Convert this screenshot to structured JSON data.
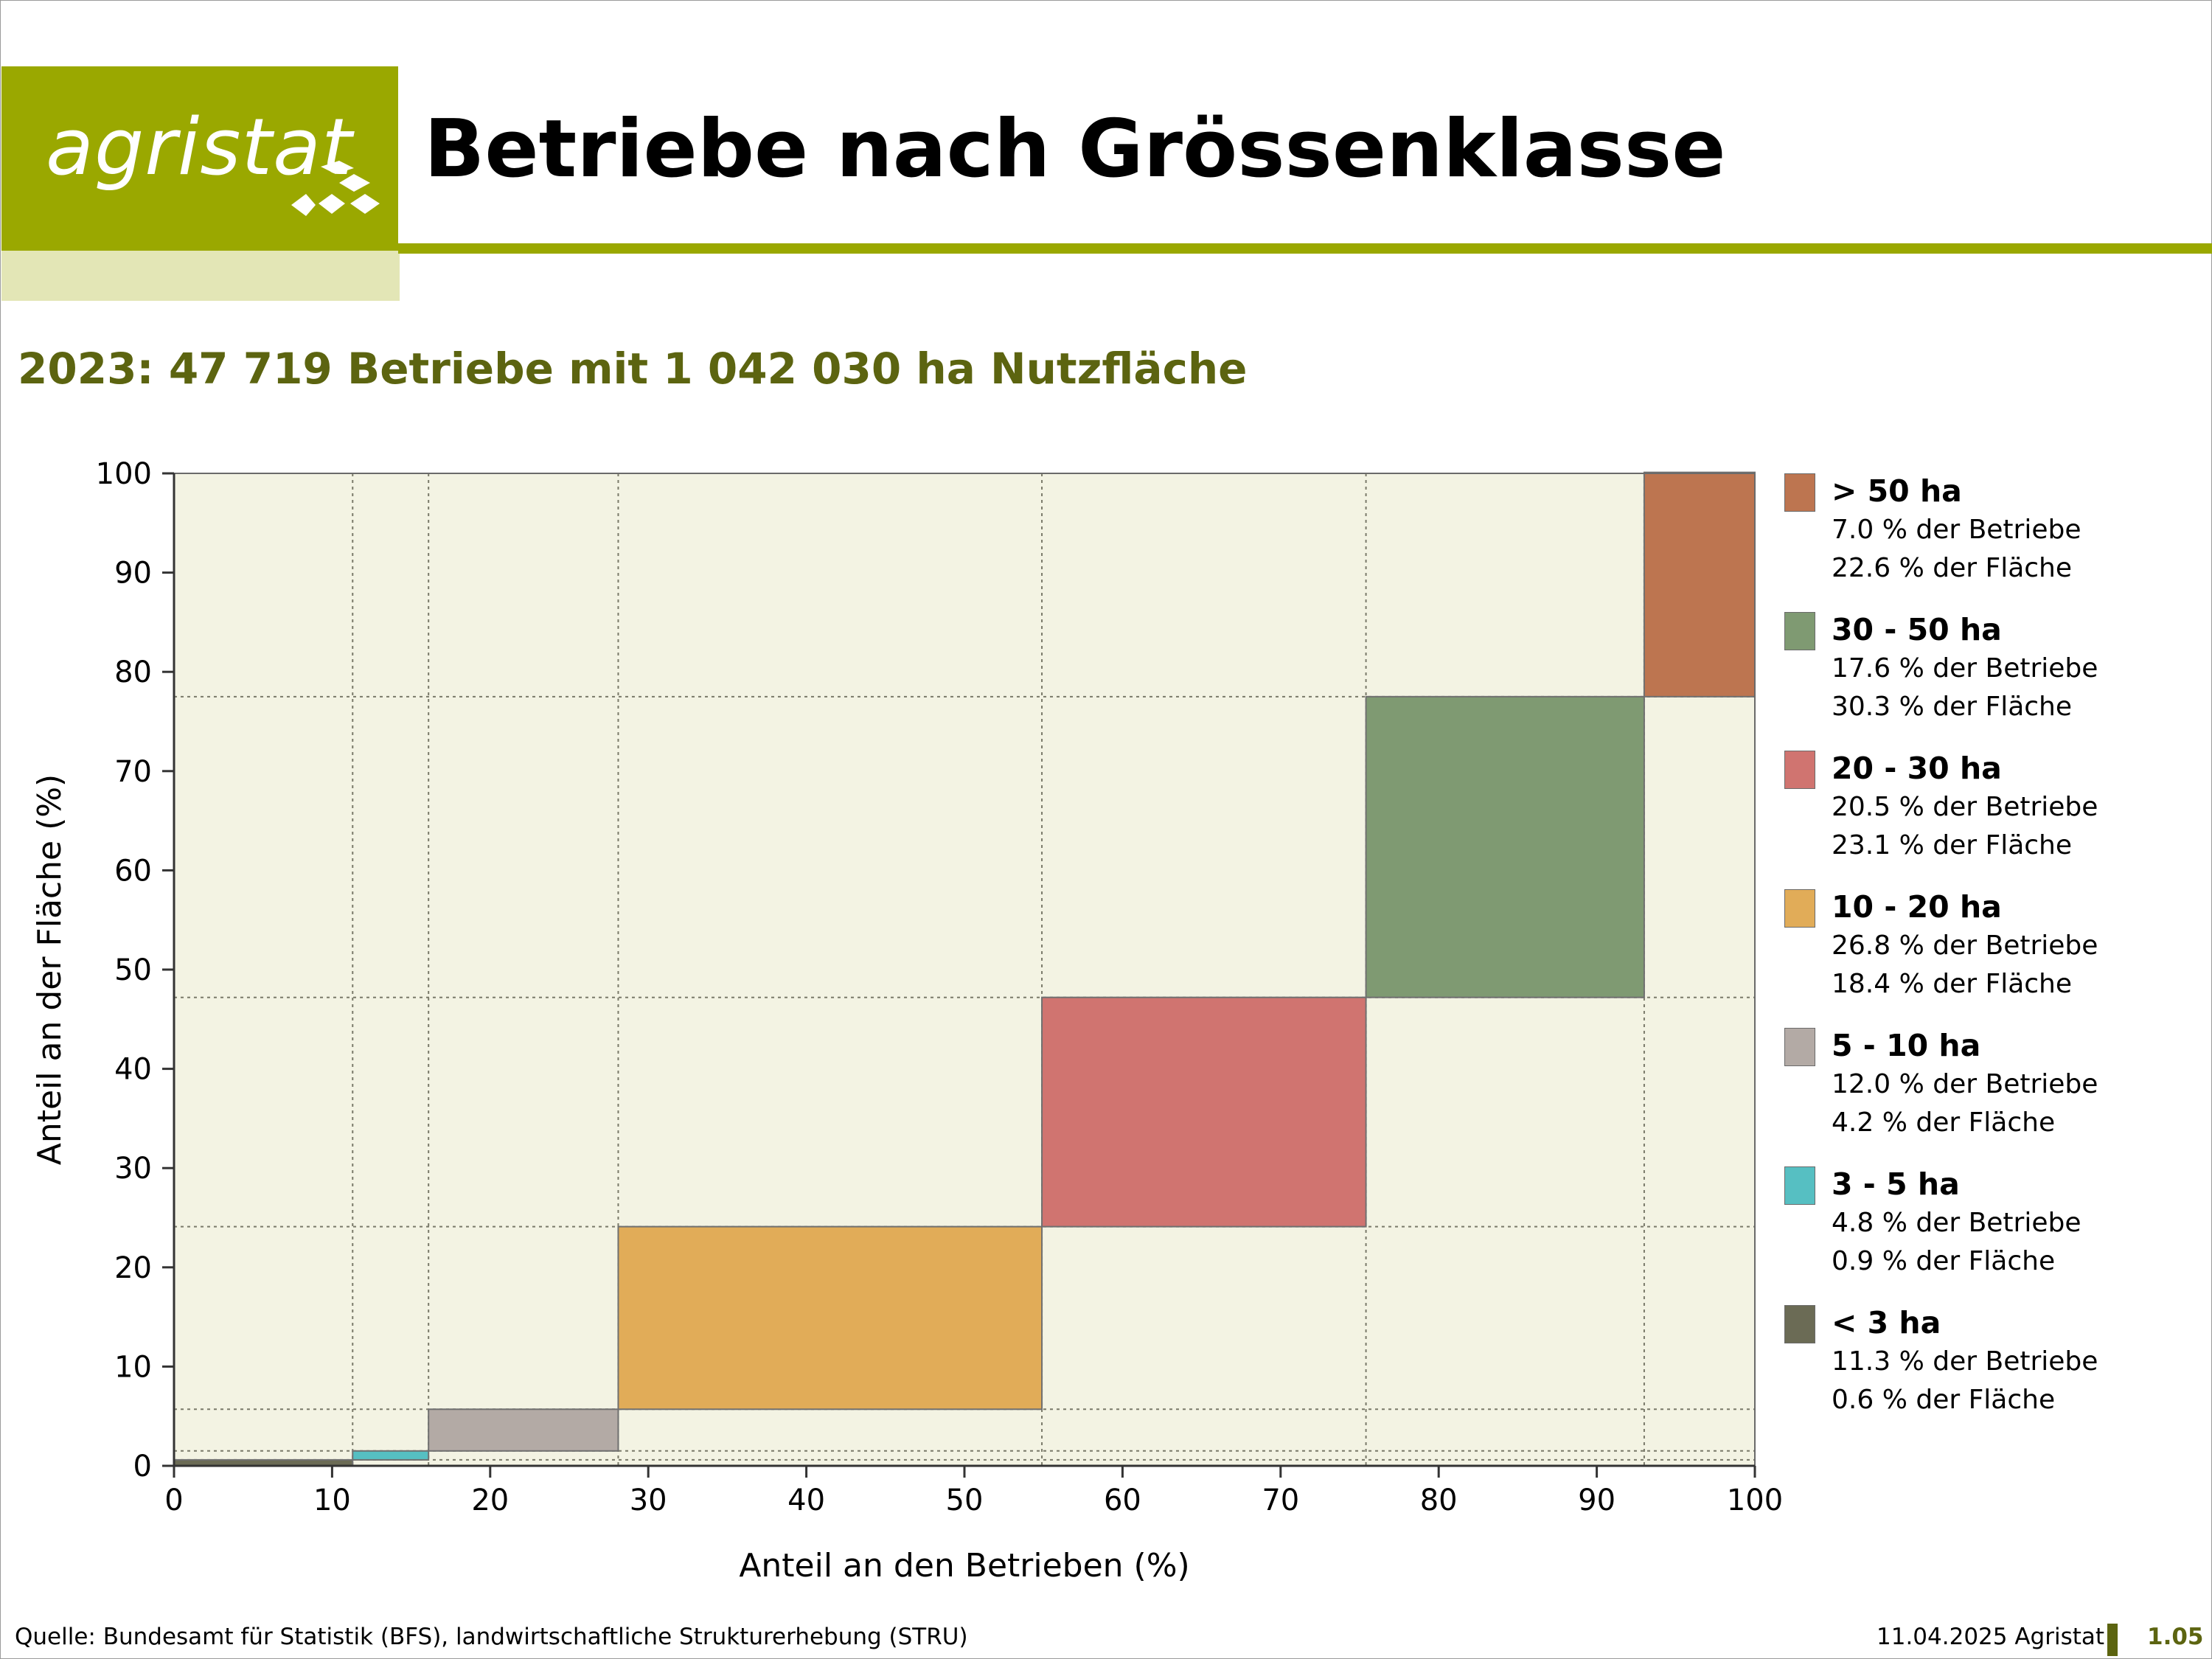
{
  "header": {
    "logo_text": "agristat",
    "title": "Betriebe nach Grössenklasse",
    "brand_color": "#9aa800"
  },
  "subtitle": "2023: 47 719 Betriebe mit 1 042 030 ha Nutzfläche",
  "chart_data": {
    "type": "marimekko-step",
    "xlabel": "Anteil an den Betrieben (%)",
    "ylabel": "Anteil an der Fläche (%)",
    "xlim": [
      0,
      100
    ],
    "ylim": [
      0,
      100
    ],
    "xticks": [
      "0",
      "10",
      "20",
      "30",
      "40",
      "50",
      "60",
      "70",
      "80",
      "90",
      "100"
    ],
    "yticks": [
      "0",
      "10",
      "20",
      "30",
      "40",
      "50",
      "60",
      "70",
      "80",
      "90",
      "100"
    ],
    "grid": "dotted at class boundaries",
    "legend_position": "right",
    "plot_background": "#f3f3e3",
    "series": [
      {
        "name": "< 3 ha",
        "betriebe_pct": 11.3,
        "flaeche_pct": 0.6,
        "color": "#6b6b55"
      },
      {
        "name": "3 - 5 ha",
        "betriebe_pct": 4.8,
        "flaeche_pct": 0.9,
        "color": "#56bfc2"
      },
      {
        "name": "5 - 10 ha",
        "betriebe_pct": 12.0,
        "flaeche_pct": 4.2,
        "color": "#b3aaa5"
      },
      {
        "name": "10 - 20 ha",
        "betriebe_pct": 26.8,
        "flaeche_pct": 18.4,
        "color": "#e1ac58"
      },
      {
        "name": "20 - 30 ha",
        "betriebe_pct": 20.5,
        "flaeche_pct": 23.1,
        "color": "#d07470"
      },
      {
        "name": "30 - 50 ha",
        "betriebe_pct": 17.6,
        "flaeche_pct": 30.3,
        "color": "#7f9a72"
      },
      {
        "name": "> 50 ha",
        "betriebe_pct": 7.0,
        "flaeche_pct": 22.6,
        "color": "#bd7550"
      }
    ]
  },
  "legend": [
    {
      "label": "> 50 ha",
      "line1": "7.0 % der Betriebe",
      "line2": "22.6 % der Fläche",
      "color": "#bd7550"
    },
    {
      "label": "30 - 50 ha",
      "line1": "17.6 % der Betriebe",
      "line2": "30.3 % der Fläche",
      "color": "#7f9a72"
    },
    {
      "label": "20 - 30 ha",
      "line1": "20.5 % der Betriebe",
      "line2": "23.1 % der Fläche",
      "color": "#d07470"
    },
    {
      "label": "10 - 20 ha",
      "line1": "26.8 % der Betriebe",
      "line2": "18.4 % der Fläche",
      "color": "#e1ac58"
    },
    {
      "label": "5 - 10 ha",
      "line1": "12.0 % der Betriebe",
      "line2": "4.2 % der Fläche",
      "color": "#b3aaa5"
    },
    {
      "label": "3 - 5 ha",
      "line1": "4.8 % der Betriebe",
      "line2": "0.9 % der Fläche",
      "color": "#56bfc2"
    },
    {
      "label": "< 3 ha",
      "line1": "11.3 % der Betriebe",
      "line2": "0.6 % der Fläche",
      "color": "#6b6b55"
    }
  ],
  "footer": {
    "source": "Quelle: Bundesamt für Statistik (BFS), landwirtschaftliche Strukturerhebung (STRU)",
    "date": "11.04.2025 Agristat",
    "page": "1.05"
  }
}
